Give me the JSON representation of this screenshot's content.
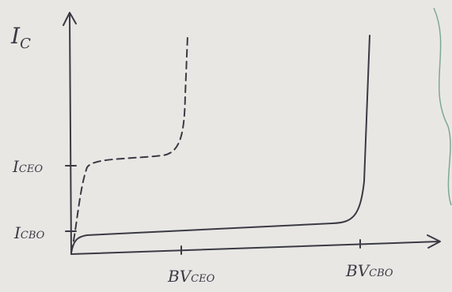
{
  "y_axis_label": {
    "main": "I",
    "sub": "C"
  },
  "y_labels": [
    {
      "main": "I",
      "sub": "CEO"
    },
    {
      "main": "I",
      "sub": "CBO"
    }
  ],
  "x_labels": [
    {
      "main": "BV",
      "sub": "CEO"
    },
    {
      "main": "BV",
      "sub": "CBO"
    }
  ]
}
